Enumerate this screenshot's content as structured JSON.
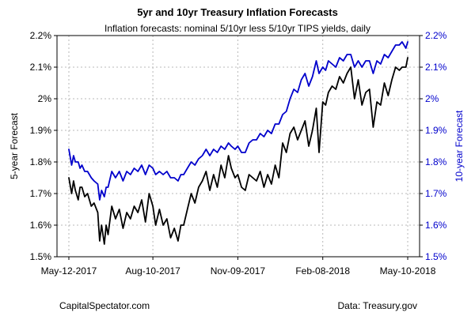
{
  "chart_data": {
    "type": "line",
    "title": "5yr and 10yr Treasury Inflation Forecasts",
    "subtitle": "Inflation forecasts: nominal 5/10yr less 5/10yr TIPS yields, daily",
    "ylabel_left": "5-year Forecast",
    "ylabel_right": "10-year Forecast",
    "xlabel": "",
    "ylim_left": [
      1.5,
      2.2
    ],
    "ylim_right": [
      1.5,
      2.2
    ],
    "xlim": [
      "2017-05-12",
      "2018-05-10"
    ],
    "x_ticks": [
      "2017-05-12",
      "2017-08-10",
      "2017-11-09",
      "2018-02-08",
      "2018-05-10"
    ],
    "x_tick_labels": [
      "May-12-2017",
      "Aug-10-2017",
      "Nov-09-2017",
      "Feb-08-2018",
      "May-10-2018"
    ],
    "y_ticks": [
      1.5,
      1.6,
      1.7,
      1.8,
      1.9,
      2.0,
      2.1,
      2.2
    ],
    "y_tick_labels": [
      "1.5%",
      "1.6%",
      "1.7%",
      "1.8%",
      "1.9%",
      "2%",
      "2.1%",
      "2.2%"
    ],
    "grid": true,
    "source_left": "CapitalSpectator.com",
    "source_right": "Data: Treasury.gov",
    "series": [
      {
        "name": "",
        "axis": "left",
        "color": "#000000",
        "x": [
          "2017-05-12",
          "2017-05-15",
          "2017-05-17",
          "2017-05-19",
          "2017-05-22",
          "2017-05-24",
          "2017-05-26",
          "2017-05-29",
          "2017-06-01",
          "2017-06-05",
          "2017-06-08",
          "2017-06-12",
          "2017-06-14",
          "2017-06-16",
          "2017-06-19",
          "2017-06-21",
          "2017-06-23",
          "2017-06-27",
          "2017-07-01",
          "2017-07-05",
          "2017-07-09",
          "2017-07-13",
          "2017-07-17",
          "2017-07-21",
          "2017-07-25",
          "2017-07-29",
          "2017-08-02",
          "2017-08-06",
          "2017-08-10",
          "2017-08-13",
          "2017-08-17",
          "2017-08-21",
          "2017-08-25",
          "2017-08-29",
          "2017-09-02",
          "2017-09-06",
          "2017-09-09",
          "2017-09-12",
          "2017-09-16",
          "2017-09-20",
          "2017-09-24",
          "2017-09-28",
          "2017-10-02",
          "2017-10-06",
          "2017-10-10",
          "2017-10-14",
          "2017-10-18",
          "2017-10-22",
          "2017-10-26",
          "2017-10-30",
          "2017-11-02",
          "2017-11-06",
          "2017-11-09",
          "2017-11-13",
          "2017-11-17",
          "2017-11-21",
          "2017-11-25",
          "2017-11-29",
          "2017-12-03",
          "2017-12-07",
          "2017-12-11",
          "2017-12-15",
          "2017-12-19",
          "2017-12-23",
          "2017-12-27",
          "2017-12-31",
          "2018-01-04",
          "2018-01-08",
          "2018-01-12",
          "2018-01-16",
          "2018-01-20",
          "2018-01-24",
          "2018-01-28",
          "2018-02-01",
          "2018-02-04",
          "2018-02-08",
          "2018-02-11",
          "2018-02-14",
          "2018-02-18",
          "2018-02-22",
          "2018-02-26",
          "2018-03-02",
          "2018-03-06",
          "2018-03-10",
          "2018-03-14",
          "2018-03-18",
          "2018-03-22",
          "2018-03-26",
          "2018-03-30",
          "2018-04-03",
          "2018-04-07",
          "2018-04-11",
          "2018-04-15",
          "2018-04-19",
          "2018-04-23",
          "2018-04-27",
          "2018-05-01",
          "2018-05-04",
          "2018-05-08",
          "2018-05-10"
        ],
        "values": [
          1.75,
          1.7,
          1.74,
          1.71,
          1.68,
          1.72,
          1.72,
          1.69,
          1.7,
          1.66,
          1.67,
          1.64,
          1.55,
          1.6,
          1.54,
          1.6,
          1.57,
          1.66,
          1.62,
          1.65,
          1.59,
          1.64,
          1.62,
          1.66,
          1.64,
          1.68,
          1.61,
          1.7,
          1.66,
          1.6,
          1.65,
          1.6,
          1.62,
          1.56,
          1.59,
          1.55,
          1.6,
          1.6,
          1.65,
          1.7,
          1.67,
          1.72,
          1.74,
          1.77,
          1.71,
          1.76,
          1.72,
          1.79,
          1.75,
          1.82,
          1.78,
          1.75,
          1.76,
          1.72,
          1.71,
          1.76,
          1.75,
          1.74,
          1.77,
          1.72,
          1.76,
          1.73,
          1.79,
          1.75,
          1.86,
          1.83,
          1.89,
          1.91,
          1.87,
          1.9,
          1.93,
          1.85,
          1.9,
          1.97,
          1.83,
          1.99,
          1.98,
          2.02,
          2.04,
          2.03,
          2.07,
          2.05,
          2.08,
          2.1,
          2.0,
          2.06,
          1.98,
          2.02,
          2.03,
          1.91,
          1.99,
          1.98,
          2.05,
          2.01,
          2.06,
          2.1,
          2.09,
          2.1,
          2.1,
          2.13
        ]
      },
      {
        "name": "",
        "axis": "right",
        "color": "#0000cc",
        "x": [
          "2017-05-12",
          "2017-05-15",
          "2017-05-17",
          "2017-05-19",
          "2017-05-22",
          "2017-05-24",
          "2017-05-26",
          "2017-05-29",
          "2017-06-01",
          "2017-06-05",
          "2017-06-08",
          "2017-06-12",
          "2017-06-14",
          "2017-06-16",
          "2017-06-19",
          "2017-06-21",
          "2017-06-23",
          "2017-06-27",
          "2017-07-01",
          "2017-07-05",
          "2017-07-09",
          "2017-07-13",
          "2017-07-17",
          "2017-07-21",
          "2017-07-25",
          "2017-07-29",
          "2017-08-02",
          "2017-08-06",
          "2017-08-10",
          "2017-08-13",
          "2017-08-17",
          "2017-08-21",
          "2017-08-25",
          "2017-08-29",
          "2017-09-02",
          "2017-09-06",
          "2017-09-09",
          "2017-09-12",
          "2017-09-16",
          "2017-09-20",
          "2017-09-24",
          "2017-09-28",
          "2017-10-02",
          "2017-10-06",
          "2017-10-10",
          "2017-10-14",
          "2017-10-18",
          "2017-10-22",
          "2017-10-26",
          "2017-10-30",
          "2017-11-02",
          "2017-11-06",
          "2017-11-09",
          "2017-11-13",
          "2017-11-17",
          "2017-11-21",
          "2017-11-25",
          "2017-11-29",
          "2017-12-03",
          "2017-12-07",
          "2017-12-11",
          "2017-12-15",
          "2017-12-19",
          "2017-12-23",
          "2017-12-27",
          "2017-12-31",
          "2018-01-04",
          "2018-01-08",
          "2018-01-12",
          "2018-01-16",
          "2018-01-20",
          "2018-01-24",
          "2018-01-28",
          "2018-02-01",
          "2018-02-04",
          "2018-02-08",
          "2018-02-11",
          "2018-02-14",
          "2018-02-18",
          "2018-02-22",
          "2018-02-26",
          "2018-03-02",
          "2018-03-06",
          "2018-03-10",
          "2018-03-14",
          "2018-03-18",
          "2018-03-22",
          "2018-03-26",
          "2018-03-30",
          "2018-04-03",
          "2018-04-07",
          "2018-04-11",
          "2018-04-15",
          "2018-04-19",
          "2018-04-23",
          "2018-04-27",
          "2018-05-01",
          "2018-05-04",
          "2018-05-08",
          "2018-05-10"
        ],
        "values": [
          1.84,
          1.79,
          1.82,
          1.8,
          1.8,
          1.78,
          1.79,
          1.77,
          1.77,
          1.75,
          1.74,
          1.73,
          1.68,
          1.71,
          1.69,
          1.72,
          1.72,
          1.77,
          1.75,
          1.77,
          1.74,
          1.77,
          1.76,
          1.78,
          1.77,
          1.79,
          1.76,
          1.79,
          1.78,
          1.76,
          1.77,
          1.76,
          1.77,
          1.75,
          1.75,
          1.74,
          1.76,
          1.76,
          1.78,
          1.8,
          1.79,
          1.81,
          1.82,
          1.84,
          1.82,
          1.84,
          1.83,
          1.85,
          1.84,
          1.86,
          1.85,
          1.84,
          1.85,
          1.83,
          1.83,
          1.86,
          1.87,
          1.87,
          1.89,
          1.88,
          1.9,
          1.89,
          1.92,
          1.92,
          1.95,
          1.96,
          2.0,
          2.03,
          2.02,
          2.06,
          2.08,
          2.04,
          2.07,
          2.12,
          2.08,
          2.1,
          2.09,
          2.12,
          2.11,
          2.1,
          2.13,
          2.12,
          2.14,
          2.14,
          2.1,
          2.12,
          2.1,
          2.12,
          2.12,
          2.08,
          2.12,
          2.11,
          2.14,
          2.13,
          2.15,
          2.17,
          2.17,
          2.18,
          2.16,
          2.18
        ]
      }
    ]
  }
}
